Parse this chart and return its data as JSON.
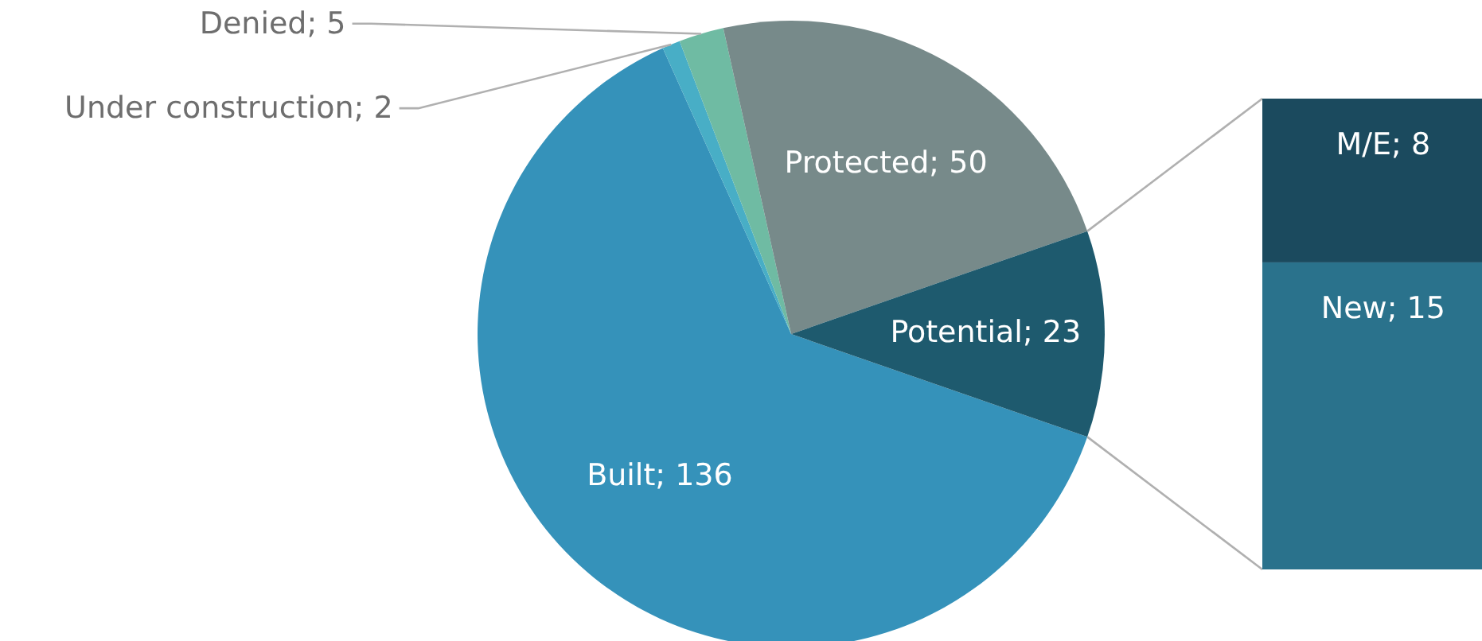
{
  "chart_data": [
    {
      "type": "pie",
      "categories": [
        "Built",
        "Under construction",
        "Denied",
        "Protected",
        "Potential"
      ],
      "values": [
        136,
        2,
        5,
        50,
        23
      ],
      "colors": [
        "#3592ba",
        "#48aec6",
        "#6fbba3",
        "#778a8a",
        "#1e5a6e"
      ],
      "value_labels": [
        "; 136",
        "; 2",
        "; 5",
        "; 50",
        "; 23"
      ]
    },
    {
      "type": "bar",
      "stacked": true,
      "categories": [
        null
      ],
      "series": [
        {
          "name": "New",
          "color": "#2a728c",
          "values": [
            15
          ],
          "value_labels": [
            "; 15"
          ]
        },
        {
          "name": "M/E",
          "color": "#1b4a5e",
          "values": [
            8
          ],
          "value_labels": [
            "; 8"
          ]
        }
      ]
    }
  ]
}
